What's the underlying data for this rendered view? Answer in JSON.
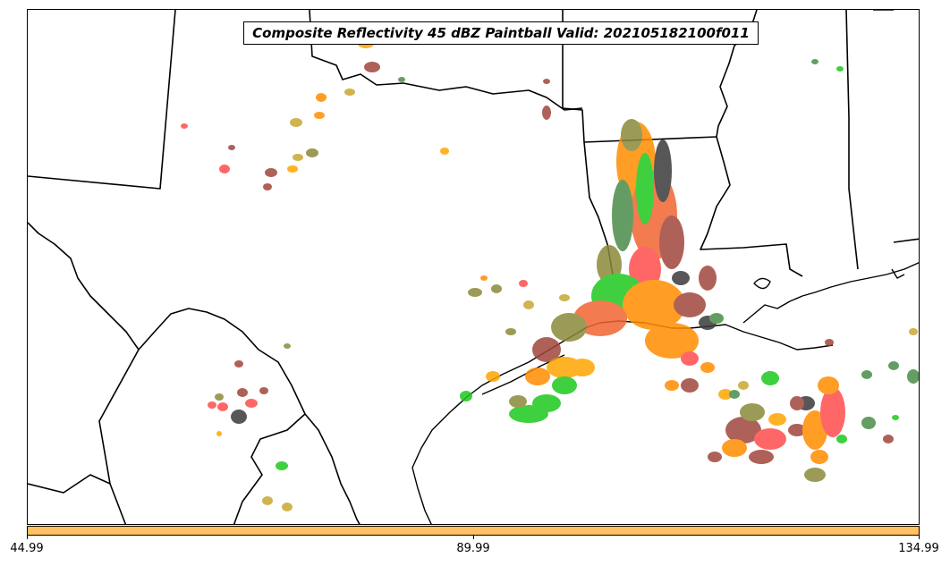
{
  "title": "Composite Reflectivity 45 dBZ Paintball Valid: 202105182100f011",
  "colorbar": {
    "color": "#ffc163",
    "ticks": [
      "44.99",
      "89.99",
      "134.99"
    ]
  },
  "colors": {
    "border": "#000000",
    "background": "#ffffff"
  },
  "paintball_palette": [
    "#ff4d4d",
    "#ff8c00",
    "#ffa500",
    "#1ec81e",
    "#3a3a3a",
    "#a0463c",
    "#8a8a3a",
    "#4a8c4a",
    "#c8a832",
    "#f06432"
  ]
}
